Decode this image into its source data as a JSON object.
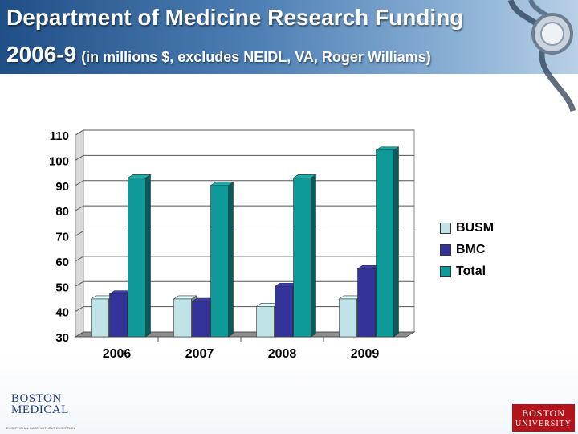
{
  "title": {
    "line1": "Department of Medicine Research Funding",
    "line2_main": "2006-9",
    "line2_sub": "(in millions $, excludes NEIDL, VA, Roger Williams)"
  },
  "chart_data": {
    "type": "bar",
    "categories": [
      "2006",
      "2007",
      "2008",
      "2009"
    ],
    "series": [
      {
        "name": "BUSM",
        "values": [
          45,
          45,
          42,
          45
        ],
        "color": "#bfe3e6"
      },
      {
        "name": "BMC",
        "values": [
          47,
          44,
          50,
          57
        ],
        "color": "#33339a"
      },
      {
        "name": "Total",
        "values": [
          93,
          90,
          93,
          104
        ],
        "color": "#0e9a98"
      }
    ],
    "ylim": [
      30,
      110
    ],
    "yticks": [
      "30",
      "40",
      "50",
      "60",
      "70",
      "80",
      "90",
      "100",
      "110"
    ],
    "grid": true,
    "legend_position": "right",
    "style": "3d"
  },
  "logos": {
    "bmc_line1": "BOSTON",
    "bmc_line2": "MEDICAL",
    "bmc_tagline": "EXCEPTIONAL CARE. WITHOUT EXCEPTION.",
    "bu_line1": "BOSTON",
    "bu_line2": "UNIVERSITY"
  },
  "colors": {
    "header_dark": "#1f4f86",
    "header_light": "#b9d0e6",
    "bu_red": "#b3141b"
  }
}
